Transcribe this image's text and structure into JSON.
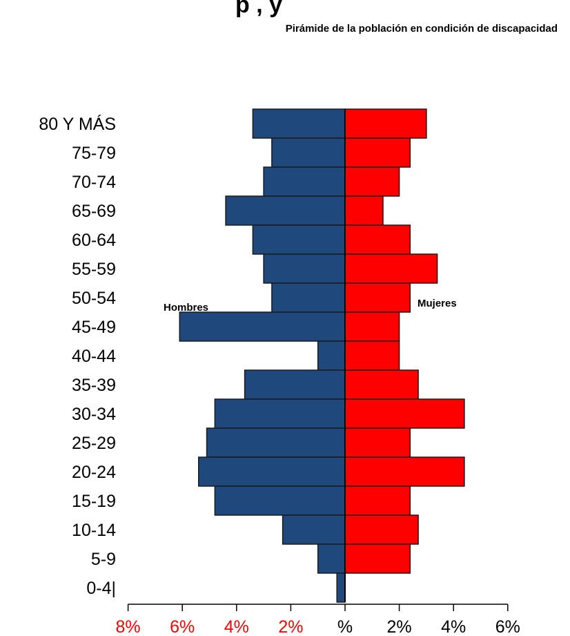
{
  "chart_data": {
    "type": "bar",
    "orientation": "horizontal-diverging",
    "title_partial": "p , y",
    "subtitle": "Pirámide de la población en condición de discapacidad",
    "categories": [
      "80 Y MÁS",
      "75-79",
      "70-74",
      "65-69",
      "60-64",
      "55-59",
      "50-54",
      "45-49",
      "40-44",
      "35-39",
      "30-34",
      "25-29",
      "20-24",
      "15-19",
      "10-14",
      "5-9",
      "0-4|"
    ],
    "series": [
      {
        "name": "Hombres",
        "values": [
          3.4,
          2.7,
          3.0,
          4.4,
          3.4,
          3.0,
          2.7,
          6.1,
          1.0,
          3.7,
          4.8,
          5.1,
          5.4,
          4.8,
          2.3,
          1.0,
          0.3
        ]
      },
      {
        "name": "Mujeres",
        "values": [
          3.0,
          2.4,
          2.0,
          1.4,
          2.4,
          3.4,
          2.4,
          2.0,
          2.0,
          2.7,
          4.4,
          2.4,
          4.4,
          2.4,
          2.7,
          2.4,
          0.0
        ]
      }
    ],
    "xlim": [
      -8,
      6
    ],
    "x_ticks": [
      {
        "value": -8,
        "label": "8%"
      },
      {
        "value": -6,
        "label": "6%"
      },
      {
        "value": -4,
        "label": "4%"
      },
      {
        "value": -2,
        "label": "2%"
      },
      {
        "value": 0,
        "label": "%"
      },
      {
        "value": 2,
        "label": "2%"
      },
      {
        "value": 4,
        "label": "4%"
      },
      {
        "value": 6,
        "label": "6%"
      }
    ],
    "colors": {
      "Hombres": "#1f497d",
      "Mujeres": "#ff0000",
      "negative_ticks": "#ff0000",
      "positive_ticks": "#000000"
    },
    "grid": false,
    "legend": "inline labels near top bars"
  }
}
